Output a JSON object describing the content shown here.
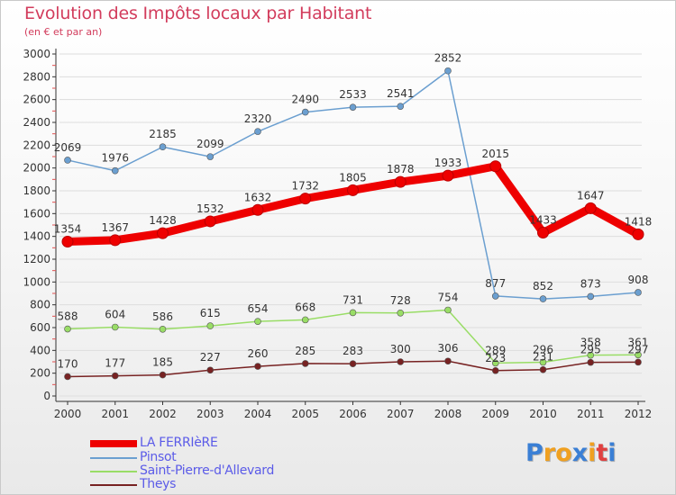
{
  "title": "Evolution des Impôts locaux par Habitant",
  "subtitle": "(en € et par an)",
  "logo": {
    "text": "Proxiti",
    "colors": [
      "#3a7fd5",
      "#f0a020",
      "#f0a020",
      "#3a7fd5",
      "#f0a020",
      "#e04040",
      "#3a7fd5"
    ]
  },
  "chart_data": {
    "type": "line",
    "title": "Evolution des Impôts locaux par Habitant",
    "subtitle": "(en € et par an)",
    "x": [
      "2000",
      "2001",
      "2002",
      "2003",
      "2004",
      "2005",
      "2006",
      "2007",
      "2008",
      "2009",
      "2010",
      "2011",
      "2012"
    ],
    "yticks": [
      0,
      200,
      400,
      600,
      800,
      1000,
      1200,
      1400,
      1600,
      1800,
      2000,
      2200,
      2400,
      2600,
      2800,
      3000
    ],
    "ylim": [
      0,
      3000
    ],
    "grid": "horizontal",
    "legend_position": "bottom-left",
    "series": [
      {
        "name": "LA FERRIèRE",
        "color": "#ee0000",
        "values": [
          1354,
          1367,
          1428,
          1532,
          1632,
          1732,
          1805,
          1878,
          1933,
          2015,
          1433,
          1647,
          1418
        ]
      },
      {
        "name": "Pinsot",
        "color": "#6b9fd0",
        "values": [
          2069,
          1976,
          2185,
          2099,
          2320,
          2490,
          2533,
          2541,
          2852,
          877,
          852,
          873,
          908
        ]
      },
      {
        "name": "Saint-Pierre-d'Allevard",
        "color": "#99dd66",
        "values": [
          588,
          604,
          586,
          615,
          654,
          668,
          731,
          728,
          754,
          289,
          296,
          358,
          361
        ]
      },
      {
        "name": "Theys",
        "color": "#772222",
        "values": [
          170,
          177,
          185,
          227,
          260,
          285,
          283,
          300,
          306,
          223,
          231,
          295,
          297
        ]
      }
    ]
  }
}
